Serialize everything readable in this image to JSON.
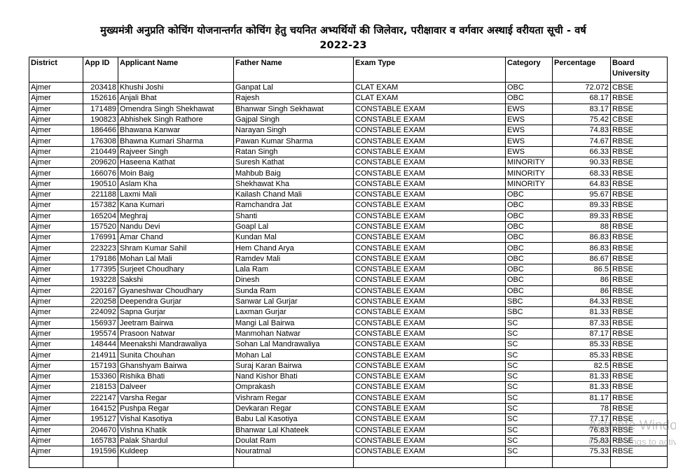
{
  "title": {
    "line1": "मुख्यमंत्री अनुप्रति कोचिंग योजनान्तर्गत कोचिंग हेतु चयनित अभ्यर्थियों की जिलेवार, परीक्षावार व वर्गवार अस्थाई वरीयता सूची -      वर्ष",
    "line2": "2022-23"
  },
  "table": {
    "headers": [
      "District",
      "App ID",
      "Applicant Name",
      "Father Name",
      "Exam Type",
      "Category",
      "Percentage",
      "Board University"
    ],
    "rows": [
      [
        "Ajmer",
        "203418",
        "Khushi Joshi",
        "Ganpat Lal",
        "CLAT EXAM",
        "OBC",
        "72.072",
        "CBSE"
      ],
      [
        "Ajmer",
        "152616",
        "Anjali Bhat",
        "Rajesh",
        "CLAT EXAM",
        "OBC",
        "68.17",
        "RBSE"
      ],
      [
        "Ajmer",
        "171489",
        "Omendra Singh Shekhawat",
        "Bhanwar Singh Sekhawat",
        "CONSTABLE EXAM",
        "EWS",
        "83.17",
        "RBSE"
      ],
      [
        "Ajmer",
        "190823",
        "Abhishek Singh Rathore",
        "Gajpal Singh",
        "CONSTABLE EXAM",
        "EWS",
        "75.42",
        "CBSE"
      ],
      [
        "Ajmer",
        "186466",
        "Bhawana Kanwar",
        "Narayan Singh",
        "CONSTABLE EXAM",
        "EWS",
        "74.83",
        "RBSE"
      ],
      [
        "Ajmer",
        "176308",
        "Bhawna Kumari Sharma",
        "Pawan Kumar Sharma",
        "CONSTABLE EXAM",
        "EWS",
        "74.67",
        "RBSE"
      ],
      [
        "Ajmer",
        "210449",
        "Rajveer Singh",
        "Ratan Singh",
        "CONSTABLE EXAM",
        "EWS",
        "66.33",
        "RBSE"
      ],
      [
        "Ajmer",
        "209620",
        "Haseena Kathat",
        "Suresh Kathat",
        "CONSTABLE EXAM",
        "MINORITY",
        "90.33",
        "RBSE"
      ],
      [
        "Ajmer",
        "166076",
        "Moin Baig",
        "Mahbub Baig",
        "CONSTABLE EXAM",
        "MINORITY",
        "68.33",
        "RBSE"
      ],
      [
        "Ajmer",
        "190510",
        "Aslam Kha",
        "Shekhawat Kha",
        "CONSTABLE EXAM",
        "MINORITY",
        "64.83",
        "RBSE"
      ],
      [
        "Ajmer",
        "221188",
        "Laxmi Mali",
        "Kailash Chand Mali",
        "CONSTABLE EXAM",
        "OBC",
        "95.67",
        "RBSE"
      ],
      [
        "Ajmer",
        "157382",
        "Kana Kumari",
        "Ramchandra Jat",
        "CONSTABLE EXAM",
        "OBC",
        "89.33",
        "RBSE"
      ],
      [
        "Ajmer",
        "165204",
        "Meghraj",
        "Shanti",
        "CONSTABLE EXAM",
        "OBC",
        "89.33",
        "RBSE"
      ],
      [
        "Ajmer",
        "157520",
        "Nandu Devi",
        "Goapl Lal",
        "CONSTABLE EXAM",
        "OBC",
        "88",
        "RBSE"
      ],
      [
        "Ajmer",
        "176991",
        "Amar Chand",
        "Kundan Mal",
        "CONSTABLE EXAM",
        "OBC",
        "86.83",
        "RBSE"
      ],
      [
        "Ajmer",
        "223223",
        "Shram Kumar Sahil",
        "Hem Chand Arya",
        "CONSTABLE EXAM",
        "OBC",
        "86.83",
        "RBSE"
      ],
      [
        "Ajmer",
        "179186",
        "Mohan Lal Mali",
        "Ramdev Mali",
        "CONSTABLE EXAM",
        "OBC",
        "86.67",
        "RBSE"
      ],
      [
        "Ajmer",
        "177395",
        "Surjeet Choudhary",
        "Lala Ram",
        "CONSTABLE EXAM",
        "OBC",
        "86.5",
        "RBSE"
      ],
      [
        "Ajmer",
        "193228",
        "Sakshi",
        "Dinesh",
        "CONSTABLE EXAM",
        "OBC",
        "86",
        "RBSE"
      ],
      [
        "Ajmer",
        "220167",
        "Gyaneshwar Choudhary",
        "Sunda Ram",
        "CONSTABLE EXAM",
        "OBC",
        "86",
        "RBSE"
      ],
      [
        "Ajmer",
        "220258",
        "Deependra Gurjar",
        "Sanwar Lal Gurjar",
        "CONSTABLE EXAM",
        "SBC",
        "84.33",
        "RBSE"
      ],
      [
        "Ajmer",
        "224092",
        "Sapna Gurjar",
        "Laxman Gurjar",
        "CONSTABLE EXAM",
        "SBC",
        "81.33",
        "RBSE"
      ],
      [
        "Ajmer",
        "156937",
        "Jeetram Bairwa",
        "Mangi Lal Bairwa",
        "CONSTABLE EXAM",
        "SC",
        "87.33",
        "RBSE"
      ],
      [
        "Ajmer",
        "195574",
        "Prasoon Natwar",
        "Manmohan Natwar",
        "CONSTABLE EXAM",
        "SC",
        "87.17",
        "RBSE"
      ],
      [
        "Ajmer",
        "148444",
        "Meenakshi Mandrawaliya",
        "Sohan Lal Mandrawaliya",
        "CONSTABLE EXAM",
        "SC",
        "85.33",
        "RBSE"
      ],
      [
        "Ajmer",
        "214911",
        "Sunita Chouhan",
        "Mohan Lal",
        "CONSTABLE EXAM",
        "SC",
        "85.33",
        "RBSE"
      ],
      [
        "Ajmer",
        "157193",
        "Ghanshyam Bairwa",
        "Suraj Karan Bairwa",
        "CONSTABLE EXAM",
        "SC",
        "82.5",
        "RBSE"
      ],
      [
        "Ajmer",
        "153360",
        "Rishika Bhati",
        "Nand Kishor Bhati",
        "CONSTABLE EXAM",
        "SC",
        "81.33",
        "RBSE"
      ],
      [
        "Ajmer",
        "218153",
        "Dalveer",
        "Omprakash",
        "CONSTABLE EXAM",
        "SC",
        "81.33",
        "RBSE"
      ],
      [
        "Ajmer",
        "222147",
        "Varsha Regar",
        "Vishram Regar",
        "CONSTABLE EXAM",
        "SC",
        "81.17",
        "RBSE"
      ],
      [
        "Ajmer",
        "164152",
        "Pushpa Regar",
        "Devkaran Regar",
        "CONSTABLE EXAM",
        "SC",
        "78",
        "RBSE"
      ],
      [
        "Ajmer",
        "195127",
        "Vishal Kasotiya",
        "Babu Lal Kasotiya",
        "CONSTABLE EXAM",
        "SC",
        "77.17",
        "RBSE"
      ],
      [
        "Ajmer",
        "204670",
        "Vishna Khatik",
        "Bhanwar Lal Khateek",
        "CONSTABLE EXAM",
        "SC",
        "76.83",
        "RBSE"
      ],
      [
        "Ajmer",
        "165783",
        "Palak Shardul",
        "Doulat Ram",
        "CONSTABLE EXAM",
        "SC",
        "75.83",
        "RBSE"
      ],
      [
        "Ajmer",
        "191596",
        "Kuldeep",
        "Nouratmal",
        "CONSTABLE EXAM",
        "SC",
        "75.33",
        "RBSE"
      ]
    ]
  },
  "watermark": {
    "line1": "Activate Windows",
    "line2": "Go to Settings to activate Windows."
  }
}
